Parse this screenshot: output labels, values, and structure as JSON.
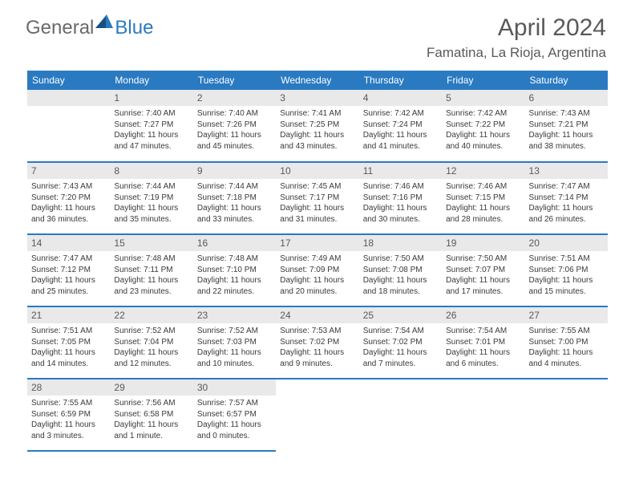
{
  "brand": {
    "general": "General",
    "blue": "Blue"
  },
  "title": "April 2024",
  "location": "Famatina, La Rioja, Argentina",
  "colors": {
    "header_bg": "#2a7ac2",
    "daynum_bg": "#e9e9e9",
    "text_dark": "#595959"
  },
  "weekdays": [
    "Sunday",
    "Monday",
    "Tuesday",
    "Wednesday",
    "Thursday",
    "Friday",
    "Saturday"
  ],
  "grid": [
    [
      {
        "empty": true
      },
      {
        "day": "1",
        "sunrise": "Sunrise: 7:40 AM",
        "sunset": "Sunset: 7:27 PM",
        "daylight": "Daylight: 11 hours and 47 minutes."
      },
      {
        "day": "2",
        "sunrise": "Sunrise: 7:40 AM",
        "sunset": "Sunset: 7:26 PM",
        "daylight": "Daylight: 11 hours and 45 minutes."
      },
      {
        "day": "3",
        "sunrise": "Sunrise: 7:41 AM",
        "sunset": "Sunset: 7:25 PM",
        "daylight": "Daylight: 11 hours and 43 minutes."
      },
      {
        "day": "4",
        "sunrise": "Sunrise: 7:42 AM",
        "sunset": "Sunset: 7:24 PM",
        "daylight": "Daylight: 11 hours and 41 minutes."
      },
      {
        "day": "5",
        "sunrise": "Sunrise: 7:42 AM",
        "sunset": "Sunset: 7:22 PM",
        "daylight": "Daylight: 11 hours and 40 minutes."
      },
      {
        "day": "6",
        "sunrise": "Sunrise: 7:43 AM",
        "sunset": "Sunset: 7:21 PM",
        "daylight": "Daylight: 11 hours and 38 minutes."
      }
    ],
    [
      {
        "day": "7",
        "sunrise": "Sunrise: 7:43 AM",
        "sunset": "Sunset: 7:20 PM",
        "daylight": "Daylight: 11 hours and 36 minutes."
      },
      {
        "day": "8",
        "sunrise": "Sunrise: 7:44 AM",
        "sunset": "Sunset: 7:19 PM",
        "daylight": "Daylight: 11 hours and 35 minutes."
      },
      {
        "day": "9",
        "sunrise": "Sunrise: 7:44 AM",
        "sunset": "Sunset: 7:18 PM",
        "daylight": "Daylight: 11 hours and 33 minutes."
      },
      {
        "day": "10",
        "sunrise": "Sunrise: 7:45 AM",
        "sunset": "Sunset: 7:17 PM",
        "daylight": "Daylight: 11 hours and 31 minutes."
      },
      {
        "day": "11",
        "sunrise": "Sunrise: 7:46 AM",
        "sunset": "Sunset: 7:16 PM",
        "daylight": "Daylight: 11 hours and 30 minutes."
      },
      {
        "day": "12",
        "sunrise": "Sunrise: 7:46 AM",
        "sunset": "Sunset: 7:15 PM",
        "daylight": "Daylight: 11 hours and 28 minutes."
      },
      {
        "day": "13",
        "sunrise": "Sunrise: 7:47 AM",
        "sunset": "Sunset: 7:14 PM",
        "daylight": "Daylight: 11 hours and 26 minutes."
      }
    ],
    [
      {
        "day": "14",
        "sunrise": "Sunrise: 7:47 AM",
        "sunset": "Sunset: 7:12 PM",
        "daylight": "Daylight: 11 hours and 25 minutes."
      },
      {
        "day": "15",
        "sunrise": "Sunrise: 7:48 AM",
        "sunset": "Sunset: 7:11 PM",
        "daylight": "Daylight: 11 hours and 23 minutes."
      },
      {
        "day": "16",
        "sunrise": "Sunrise: 7:48 AM",
        "sunset": "Sunset: 7:10 PM",
        "daylight": "Daylight: 11 hours and 22 minutes."
      },
      {
        "day": "17",
        "sunrise": "Sunrise: 7:49 AM",
        "sunset": "Sunset: 7:09 PM",
        "daylight": "Daylight: 11 hours and 20 minutes."
      },
      {
        "day": "18",
        "sunrise": "Sunrise: 7:50 AM",
        "sunset": "Sunset: 7:08 PM",
        "daylight": "Daylight: 11 hours and 18 minutes."
      },
      {
        "day": "19",
        "sunrise": "Sunrise: 7:50 AM",
        "sunset": "Sunset: 7:07 PM",
        "daylight": "Daylight: 11 hours and 17 minutes."
      },
      {
        "day": "20",
        "sunrise": "Sunrise: 7:51 AM",
        "sunset": "Sunset: 7:06 PM",
        "daylight": "Daylight: 11 hours and 15 minutes."
      }
    ],
    [
      {
        "day": "21",
        "sunrise": "Sunrise: 7:51 AM",
        "sunset": "Sunset: 7:05 PM",
        "daylight": "Daylight: 11 hours and 14 minutes."
      },
      {
        "day": "22",
        "sunrise": "Sunrise: 7:52 AM",
        "sunset": "Sunset: 7:04 PM",
        "daylight": "Daylight: 11 hours and 12 minutes."
      },
      {
        "day": "23",
        "sunrise": "Sunrise: 7:52 AM",
        "sunset": "Sunset: 7:03 PM",
        "daylight": "Daylight: 11 hours and 10 minutes."
      },
      {
        "day": "24",
        "sunrise": "Sunrise: 7:53 AM",
        "sunset": "Sunset: 7:02 PM",
        "daylight": "Daylight: 11 hours and 9 minutes."
      },
      {
        "day": "25",
        "sunrise": "Sunrise: 7:54 AM",
        "sunset": "Sunset: 7:02 PM",
        "daylight": "Daylight: 11 hours and 7 minutes."
      },
      {
        "day": "26",
        "sunrise": "Sunrise: 7:54 AM",
        "sunset": "Sunset: 7:01 PM",
        "daylight": "Daylight: 11 hours and 6 minutes."
      },
      {
        "day": "27",
        "sunrise": "Sunrise: 7:55 AM",
        "sunset": "Sunset: 7:00 PM",
        "daylight": "Daylight: 11 hours and 4 minutes."
      }
    ],
    [
      {
        "day": "28",
        "sunrise": "Sunrise: 7:55 AM",
        "sunset": "Sunset: 6:59 PM",
        "daylight": "Daylight: 11 hours and 3 minutes."
      },
      {
        "day": "29",
        "sunrise": "Sunrise: 7:56 AM",
        "sunset": "Sunset: 6:58 PM",
        "daylight": "Daylight: 11 hours and 1 minute."
      },
      {
        "day": "30",
        "sunrise": "Sunrise: 7:57 AM",
        "sunset": "Sunset: 6:57 PM",
        "daylight": "Daylight: 11 hours and 0 minutes."
      },
      {
        "empty": true
      },
      {
        "empty": true
      },
      {
        "empty": true
      },
      {
        "empty": true
      }
    ]
  ]
}
